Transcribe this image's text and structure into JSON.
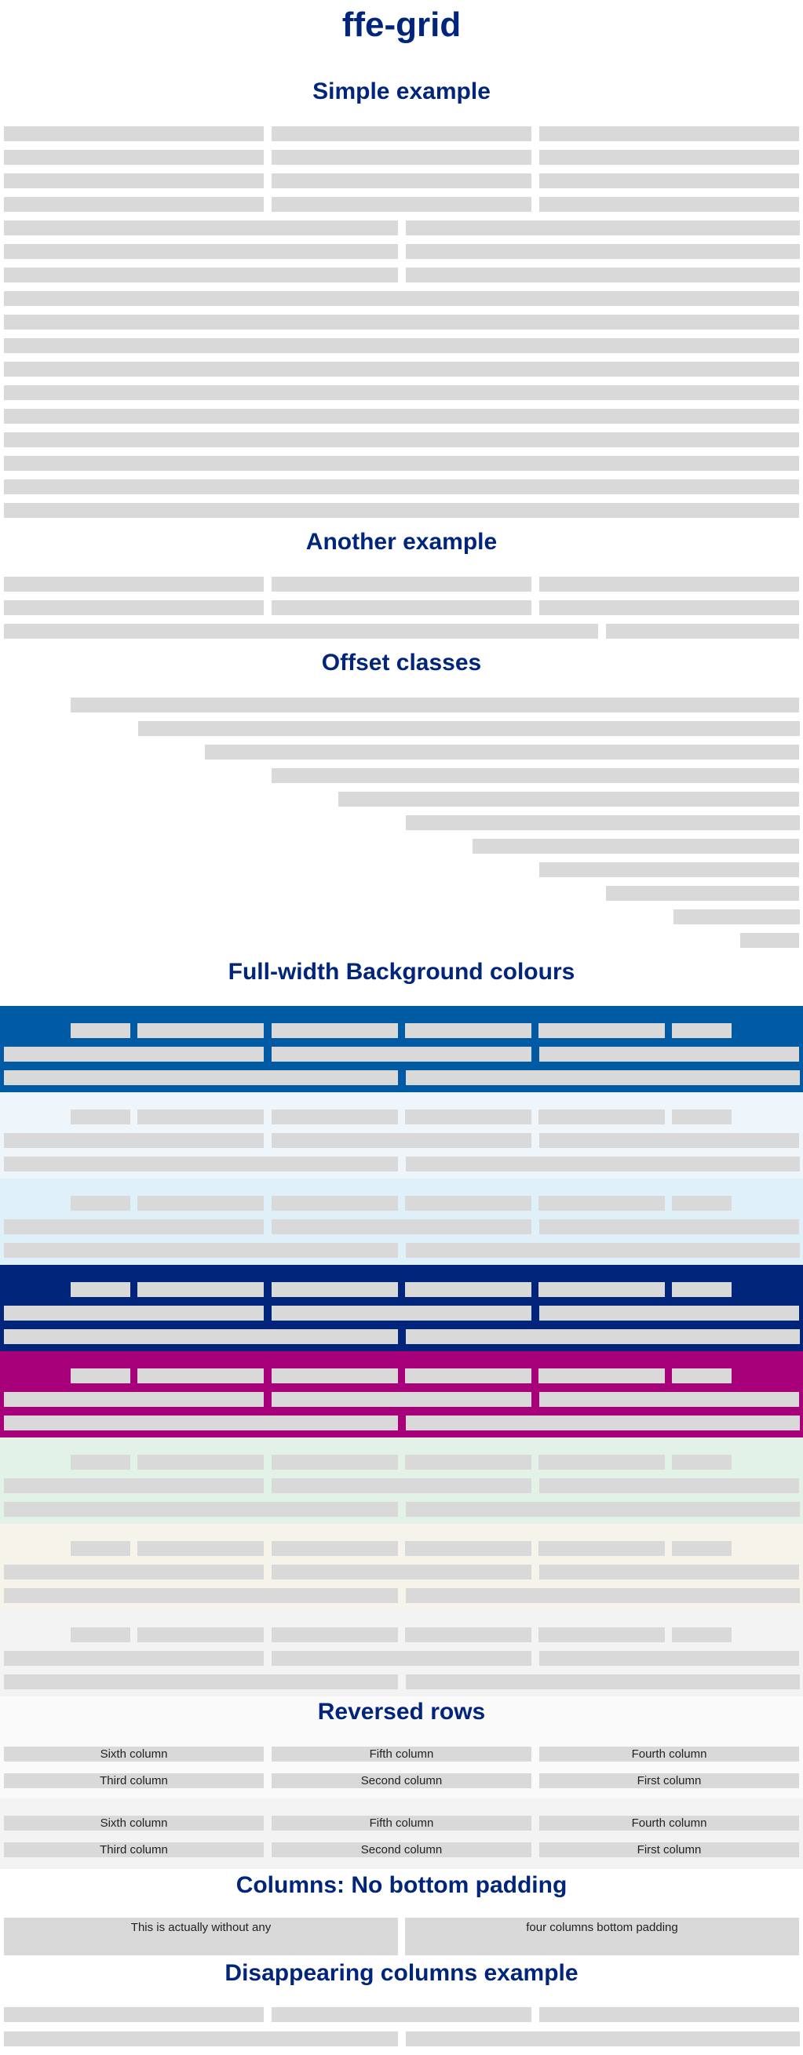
{
  "page": {
    "title": "ffe-grid"
  },
  "sections": {
    "simple_example": "Simple example",
    "another_example": "Another example",
    "offset_classes": "Offset classes",
    "full_width_bg": "Full-width Background colours",
    "reversed_rows": "Reversed rows",
    "no_bottom_padding": "Columns: No bottom padding",
    "disappearing": "Disappearing columns example"
  },
  "colors": {
    "heading": "#00257a",
    "cell": "#d9d9d9",
    "backgrounds": [
      "#005aa4",
      "#eef6fc",
      "#dff0f8",
      "#00257a",
      "#a8007a",
      "#e2f2e6",
      "#f6f4ea",
      "#f3f3f3",
      "#fafafa",
      "#f3f3f3"
    ]
  },
  "reversed": {
    "row1": [
      "Sixth column",
      "Fifth column",
      "Fourth column"
    ],
    "row2": [
      "Third column",
      "Second column",
      "First column"
    ]
  },
  "no_padding": {
    "left": "This is actually without any",
    "right": "four columns bottom padding"
  }
}
